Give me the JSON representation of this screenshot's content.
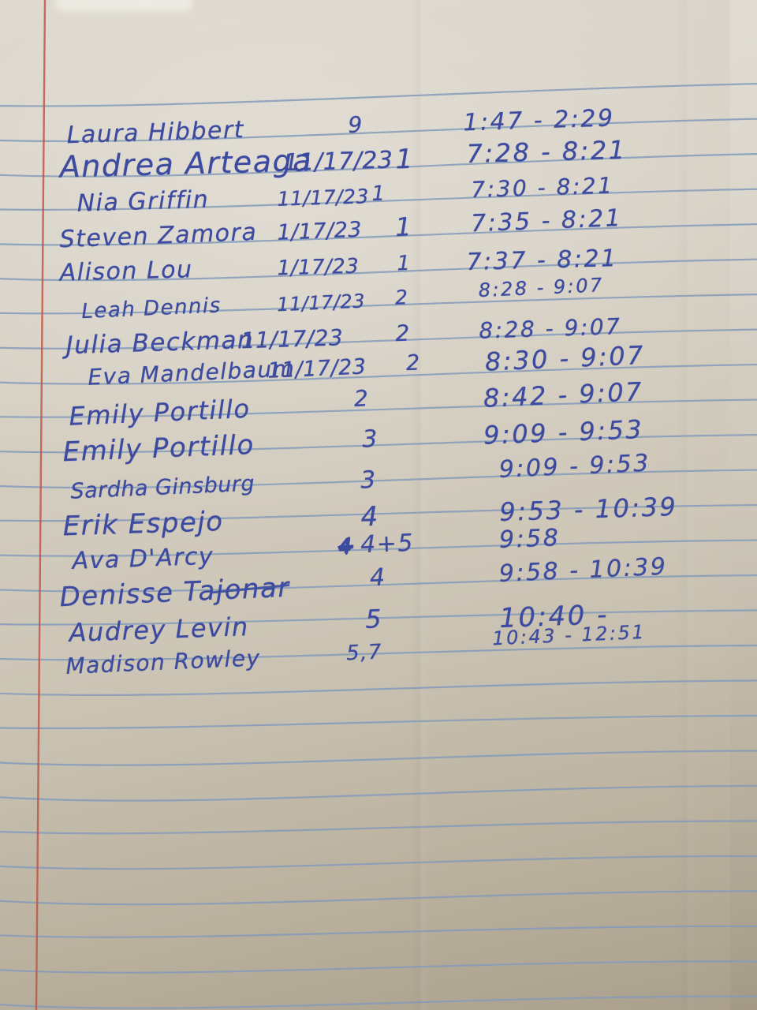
{
  "document": {
    "kind": "handwritten sign-in sheet on ruled notebook paper",
    "ink_color": "#3c4aa0",
    "rule_line_color": "#849bba",
    "margin_line_color": "#c05648",
    "paper_color_top": "#dcd7cc",
    "paper_color_bottom": "#a99f8c"
  },
  "entries": [
    {
      "name": "Laura Hibbert",
      "date": "",
      "group": "9",
      "time": "1:47 - 2:29"
    },
    {
      "name": "Andrea Arteaga",
      "date": "11/17/23",
      "group": "1",
      "time": "7:28 - 8:21"
    },
    {
      "name": "Nia Griffin",
      "date": "11/17/23",
      "group": "1",
      "time": "7:30 - 8:21"
    },
    {
      "name": "Steven Zamora",
      "date": "1/17/23",
      "group": "1",
      "time": "7:35 - 8:21"
    },
    {
      "name": "Alison Lou",
      "date": "1/17/23",
      "group": "1",
      "time": "7:37 - 8:21"
    },
    {
      "name": "Leah Dennis",
      "date": "11/17/23",
      "group": "2",
      "time": "8:28 - 9:07"
    },
    {
      "name": "Julia Beckman",
      "date": "11/17/23",
      "group": "2",
      "time": "8:28 - 9:07"
    },
    {
      "name": "Eva Mandelbaum",
      "date": "11/17/23",
      "group": "2",
      "time": "8:30 - 9:07"
    },
    {
      "name": "Emily Portillo",
      "date": "",
      "group": "2",
      "time": "8:42 - 9:07"
    },
    {
      "name": "Emily Portillo",
      "date": "",
      "group": "3",
      "time": "9:09 - 9:53"
    },
    {
      "name": "Sardha Ginsburg",
      "date": "",
      "group": "3",
      "time": "9:09 - 9:53"
    },
    {
      "name": "Erik Espejo",
      "date": "",
      "group": "4",
      "time": "9:53 - 10:39"
    },
    {
      "name": "Ava D'Arcy",
      "date": "",
      "crossed_out": "4",
      "group": "4+5",
      "time": "9:58"
    },
    {
      "name": "Denisse Tajonar",
      "date": "",
      "group": "4",
      "time": "9:58 - 10:39"
    },
    {
      "name": "Audrey Levin",
      "date": "",
      "group": "5",
      "time": "10:40 -"
    },
    {
      "name": "Madison Rowley",
      "date": "",
      "group": "5,7",
      "time": "10:43 - 12:51"
    }
  ]
}
